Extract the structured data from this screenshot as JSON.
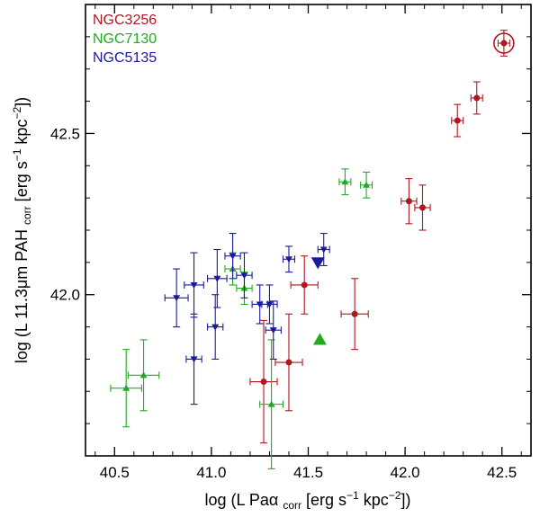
{
  "chart_data": {
    "type": "scatter",
    "title": "",
    "xlabel": "log (L Paα corr [erg s⁻¹ kpc⁻²])",
    "ylabel": "log (L 11.3μm PAH corr [erg s⁻¹ kpc⁻²])",
    "xlabel_parts": {
      "pre": "log (L Paα",
      "sub": "corr",
      "post": "[erg s",
      "exp1": "−1",
      "mid": "kpc",
      "exp2": "−2",
      "end": "])"
    },
    "ylabel_parts": {
      "pre": "log (L 11.3μm PAH",
      "sub": "corr",
      "post": "[erg s",
      "exp1": "−1",
      "mid": "kpc",
      "exp2": "−2",
      "end": "])"
    },
    "xlim": [
      40.35,
      42.65
    ],
    "ylim": [
      41.5,
      42.9
    ],
    "x_ticks": [
      40.5,
      41.0,
      41.5,
      42.0,
      42.5
    ],
    "x_tick_labels": [
      "40.5",
      "41.0",
      "41.5",
      "42.0",
      "42.5"
    ],
    "y_ticks": [
      42.0,
      42.5
    ],
    "y_tick_labels": [
      "42.0",
      "42.5"
    ],
    "legend": {
      "position": "top-left",
      "entries": [
        {
          "label": "NGC3256",
          "color": "#b0171f"
        },
        {
          "label": "NGC7130",
          "color": "#22aa22"
        },
        {
          "label": "NGC5135",
          "color": "#1a1a9e"
        }
      ]
    },
    "series": [
      {
        "name": "NGC3256",
        "color": "#b0171f",
        "marker": "circle",
        "points": [
          {
            "x": 42.51,
            "y": 42.78,
            "xerr": 0.03,
            "yerr": 0.04,
            "nucleus": true
          },
          {
            "x": 42.37,
            "y": 42.61,
            "xerr": 0.03,
            "yerr": 0.05
          },
          {
            "x": 42.27,
            "y": 42.54,
            "xerr": 0.03,
            "yerr": 0.05
          },
          {
            "x": 42.02,
            "y": 42.29,
            "xerr": 0.04,
            "yerr": 0.07
          },
          {
            "x": 42.09,
            "y": 42.27,
            "xerr": 0.04,
            "yerr": 0.07
          },
          {
            "x": 41.48,
            "y": 42.03,
            "xerr": 0.07,
            "yerr": 0.09
          },
          {
            "x": 41.74,
            "y": 41.94,
            "xerr": 0.07,
            "yerr": 0.11
          },
          {
            "x": 41.4,
            "y": 41.79,
            "xerr": 0.07,
            "yerr": 0.15
          },
          {
            "x": 41.27,
            "y": 41.73,
            "xerr": 0.07,
            "yerr": 0.19
          }
        ]
      },
      {
        "name": "NGC7130",
        "color": "#22aa22",
        "marker": "triangle-up",
        "points": [
          {
            "x": 41.69,
            "y": 42.35,
            "xerr": 0.03,
            "yerr": 0.04
          },
          {
            "x": 41.8,
            "y": 42.34,
            "xerr": 0.03,
            "yerr": 0.04
          },
          {
            "x": 41.11,
            "y": 42.08,
            "xerr": 0.04,
            "yerr": 0.05
          },
          {
            "x": 41.17,
            "y": 42.02,
            "xerr": 0.04,
            "yerr": 0.05
          },
          {
            "x": 40.65,
            "y": 41.75,
            "xerr": 0.08,
            "yerr": 0.11
          },
          {
            "x": 40.56,
            "y": 41.71,
            "xerr": 0.08,
            "yerr": 0.12
          },
          {
            "x": 41.31,
            "y": 41.66,
            "xerr": 0.06,
            "yerr": 0.2
          }
        ]
      },
      {
        "name": "NGC5135",
        "color": "#1a1a9e",
        "marker": "triangle-down",
        "points": [
          {
            "x": 41.58,
            "y": 42.14,
            "xerr": 0.03,
            "yerr": 0.05
          },
          {
            "x": 41.11,
            "y": 42.12,
            "xerr": 0.04,
            "yerr": 0.07
          },
          {
            "x": 41.4,
            "y": 42.11,
            "xerr": 0.03,
            "yerr": 0.04
          },
          {
            "x": 41.17,
            "y": 42.06,
            "xerr": 0.04,
            "yerr": 0.07
          },
          {
            "x": 41.03,
            "y": 42.05,
            "xerr": 0.05,
            "yerr": 0.09
          },
          {
            "x": 40.91,
            "y": 42.03,
            "xerr": 0.05,
            "yerr": 0.1
          },
          {
            "x": 40.82,
            "y": 41.99,
            "xerr": 0.06,
            "yerr": 0.09
          },
          {
            "x": 41.25,
            "y": 41.97,
            "xerr": 0.04,
            "yerr": 0.06
          },
          {
            "x": 41.3,
            "y": 41.97,
            "xerr": 0.04,
            "yerr": 0.06
          },
          {
            "x": 41.02,
            "y": 41.9,
            "xerr": 0.04,
            "yerr": 0.1
          },
          {
            "x": 41.32,
            "y": 41.89,
            "xerr": 0.04,
            "yerr": 0.09
          },
          {
            "x": 40.91,
            "y": 41.8,
            "xerr": 0.04,
            "yerr": 0.14
          }
        ]
      }
    ],
    "special_markers": [
      {
        "series": "NGC5135",
        "x": 41.55,
        "y": 42.1,
        "marker": "triangle-down-large",
        "color": "#1a1a9e"
      },
      {
        "series": "NGC7130",
        "x": 41.56,
        "y": 41.86,
        "marker": "triangle-up-large",
        "color": "#22aa22"
      }
    ]
  }
}
